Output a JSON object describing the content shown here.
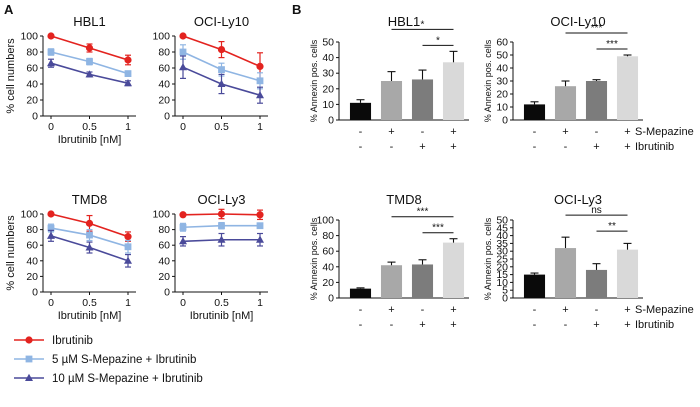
{
  "panel_labels": {
    "a": "A",
    "b": "B"
  },
  "series_styles": [
    {
      "color": "#e3231f",
      "marker": "circle"
    },
    {
      "color": "#8fb5e3",
      "marker": "square"
    },
    {
      "color": "#4a4a9a",
      "marker": "triangle"
    }
  ],
  "bar_colors": [
    "#0a0a0a",
    "#a8a8a8",
    "#7c7c7c",
    "#d9d9d9"
  ],
  "legend": {
    "items": [
      "Ibrutinib",
      "5 µM S-Mepazine + Ibrutinib",
      "10  µM S-Mepazine + Ibrutinib"
    ]
  },
  "condition_grid": {
    "row_labels": [
      "S-Mepazine",
      "Ibrutinib"
    ],
    "rows": [
      [
        "-",
        "+",
        "-",
        "+"
      ],
      [
        "-",
        "-",
        "+",
        "+"
      ]
    ]
  },
  "chart_data": [
    {
      "type": "line",
      "title": "HBL1",
      "xlabel": "Ibrutinib [nM]",
      "ylabel": "% cell numbers",
      "x": [
        0,
        0.5,
        1
      ],
      "xticks": [
        "0",
        "0.5",
        "1"
      ],
      "ylim": [
        0,
        100
      ],
      "yticks": [
        "0",
        "20",
        "40",
        "60",
        "80",
        "100"
      ],
      "show_xlabel": true,
      "show_ylabel": true,
      "show_yticks": true,
      "series": [
        {
          "name": "Ibrutinib",
          "values": [
            100,
            85,
            70
          ],
          "errors": [
            0,
            5,
            6
          ]
        },
        {
          "name": "5 µM S-Mepazine + Ibrutinib",
          "values": [
            80,
            68,
            53
          ],
          "errors": [
            4,
            4,
            3
          ]
        },
        {
          "name": "10  µM S-Mepazine + Ibrutinib",
          "values": [
            66,
            52,
            41
          ],
          "errors": [
            5,
            3,
            3
          ]
        }
      ]
    },
    {
      "type": "line",
      "title": "OCI-Ly10",
      "xlabel": "Ibrutinib [nM]",
      "ylabel": "",
      "x": [
        0,
        0.5,
        1
      ],
      "xticks": [
        "0",
        "0.5",
        "1"
      ],
      "ylim": [
        0,
        100
      ],
      "yticks": [
        "0",
        "20",
        "40",
        "60",
        "80",
        "100"
      ],
      "show_xlabel": false,
      "show_ylabel": false,
      "show_yticks": true,
      "series": [
        {
          "name": "Ibrutinib",
          "values": [
            100,
            83,
            62
          ],
          "errors": [
            0,
            10,
            17
          ]
        },
        {
          "name": "5 µM S-Mepazine + Ibrutinib",
          "values": [
            80,
            58,
            44
          ],
          "errors": [
            9,
            8,
            10
          ]
        },
        {
          "name": "10  µM S-Mepazine + Ibrutinib",
          "values": [
            61,
            40,
            26
          ],
          "errors": [
            14,
            12,
            10
          ]
        }
      ]
    },
    {
      "type": "line",
      "title": "TMD8",
      "xlabel": "Ibrutinib [nM]",
      "ylabel": "% cell numbers",
      "x": [
        0,
        0.5,
        1
      ],
      "xticks": [
        "0",
        "0.5",
        "1"
      ],
      "ylim": [
        0,
        100
      ],
      "yticks": [
        "0",
        "20",
        "40",
        "60",
        "80",
        "100"
      ],
      "show_xlabel": true,
      "show_ylabel": true,
      "show_yticks": true,
      "series": [
        {
          "name": "Ibrutinib",
          "values": [
            100,
            88,
            71
          ],
          "errors": [
            0,
            10,
            6
          ]
        },
        {
          "name": "5 µM S-Mepazine + Ibrutinib",
          "values": [
            82,
            73,
            58
          ],
          "errors": [
            5,
            7,
            8
          ]
        },
        {
          "name": "10  µM S-Mepazine + Ibrutinib",
          "values": [
            72,
            57,
            40
          ],
          "errors": [
            7,
            7,
            8
          ]
        }
      ]
    },
    {
      "type": "line",
      "title": "OCI-Ly3",
      "xlabel": "Ibrutinib [nM]",
      "ylabel": "",
      "x": [
        0,
        0.5,
        1
      ],
      "xticks": [
        "0",
        "0.5",
        "1"
      ],
      "ylim": [
        0,
        100
      ],
      "yticks": [
        "0",
        "20",
        "40",
        "60",
        "80",
        "100"
      ],
      "show_xlabel": true,
      "show_ylabel": false,
      "show_yticks": true,
      "series": [
        {
          "name": "Ibrutinib",
          "values": [
            99,
            100,
            99
          ],
          "errors": [
            0,
            6,
            6
          ]
        },
        {
          "name": "5 µM S-Mepazine + Ibrutinib",
          "values": [
            83,
            85,
            85
          ],
          "errors": [
            5,
            4,
            3
          ]
        },
        {
          "name": "10  µM S-Mepazine + Ibrutinib",
          "values": [
            65,
            67,
            67
          ],
          "errors": [
            6,
            8,
            8
          ]
        }
      ]
    },
    {
      "type": "bar",
      "title": "HBL1",
      "ylabel": "% Annexin pos. cells",
      "ylim": [
        0,
        50
      ],
      "yticks": [
        "0",
        "10",
        "20",
        "30",
        "40",
        "50"
      ],
      "show_condition_labels": false,
      "values": [
        11,
        25,
        26,
        37
      ],
      "errors": [
        2,
        6,
        6,
        7
      ],
      "annotations": [
        {
          "from": 1,
          "to": 3,
          "label": "*",
          "level": 2
        },
        {
          "from": 2,
          "to": 3,
          "label": "*",
          "level": 1
        }
      ]
    },
    {
      "type": "bar",
      "title": "OCI-Ly10",
      "ylabel": "% Annexin pos. cells",
      "ylim": [
        0,
        60
      ],
      "yticks": [
        "0",
        "10",
        "20",
        "30",
        "40",
        "50",
        "60"
      ],
      "show_condition_labels": true,
      "values": [
        12,
        26,
        30,
        49
      ],
      "errors": [
        2,
        4,
        1,
        1
      ],
      "annotations": [
        {
          "from": 1,
          "to": 3,
          "label": "***",
          "level": 2
        },
        {
          "from": 2,
          "to": 3,
          "label": "***",
          "level": 1
        }
      ]
    },
    {
      "type": "bar",
      "title": "TMD8",
      "ylabel": "% Annexin pos. cells",
      "ylim": [
        0,
        100
      ],
      "yticks": [
        "0",
        "20",
        "40",
        "60",
        "80",
        "100"
      ],
      "show_condition_labels": false,
      "values": [
        12,
        42,
        43,
        71
      ],
      "errors": [
        1,
        4,
        6,
        5
      ],
      "annotations": [
        {
          "from": 1,
          "to": 3,
          "label": "***",
          "level": 2
        },
        {
          "from": 2,
          "to": 3,
          "label": "***",
          "level": 1
        }
      ]
    },
    {
      "type": "bar",
      "title": "OCI-Ly3",
      "ylabel": "% Annexin pos. cells",
      "ylim": [
        0,
        50
      ],
      "yticks": [
        "0",
        "5",
        "10",
        "15",
        "20",
        "25",
        "30",
        "35",
        "40",
        "45",
        "50"
      ],
      "show_condition_labels": true,
      "values": [
        15,
        32,
        18,
        31
      ],
      "errors": [
        1,
        7,
        4,
        4
      ],
      "annotations": [
        {
          "from": 1,
          "to": 3,
          "label": "ns",
          "level": 2
        },
        {
          "from": 2,
          "to": 3,
          "label": "**",
          "level": 1
        }
      ]
    }
  ]
}
